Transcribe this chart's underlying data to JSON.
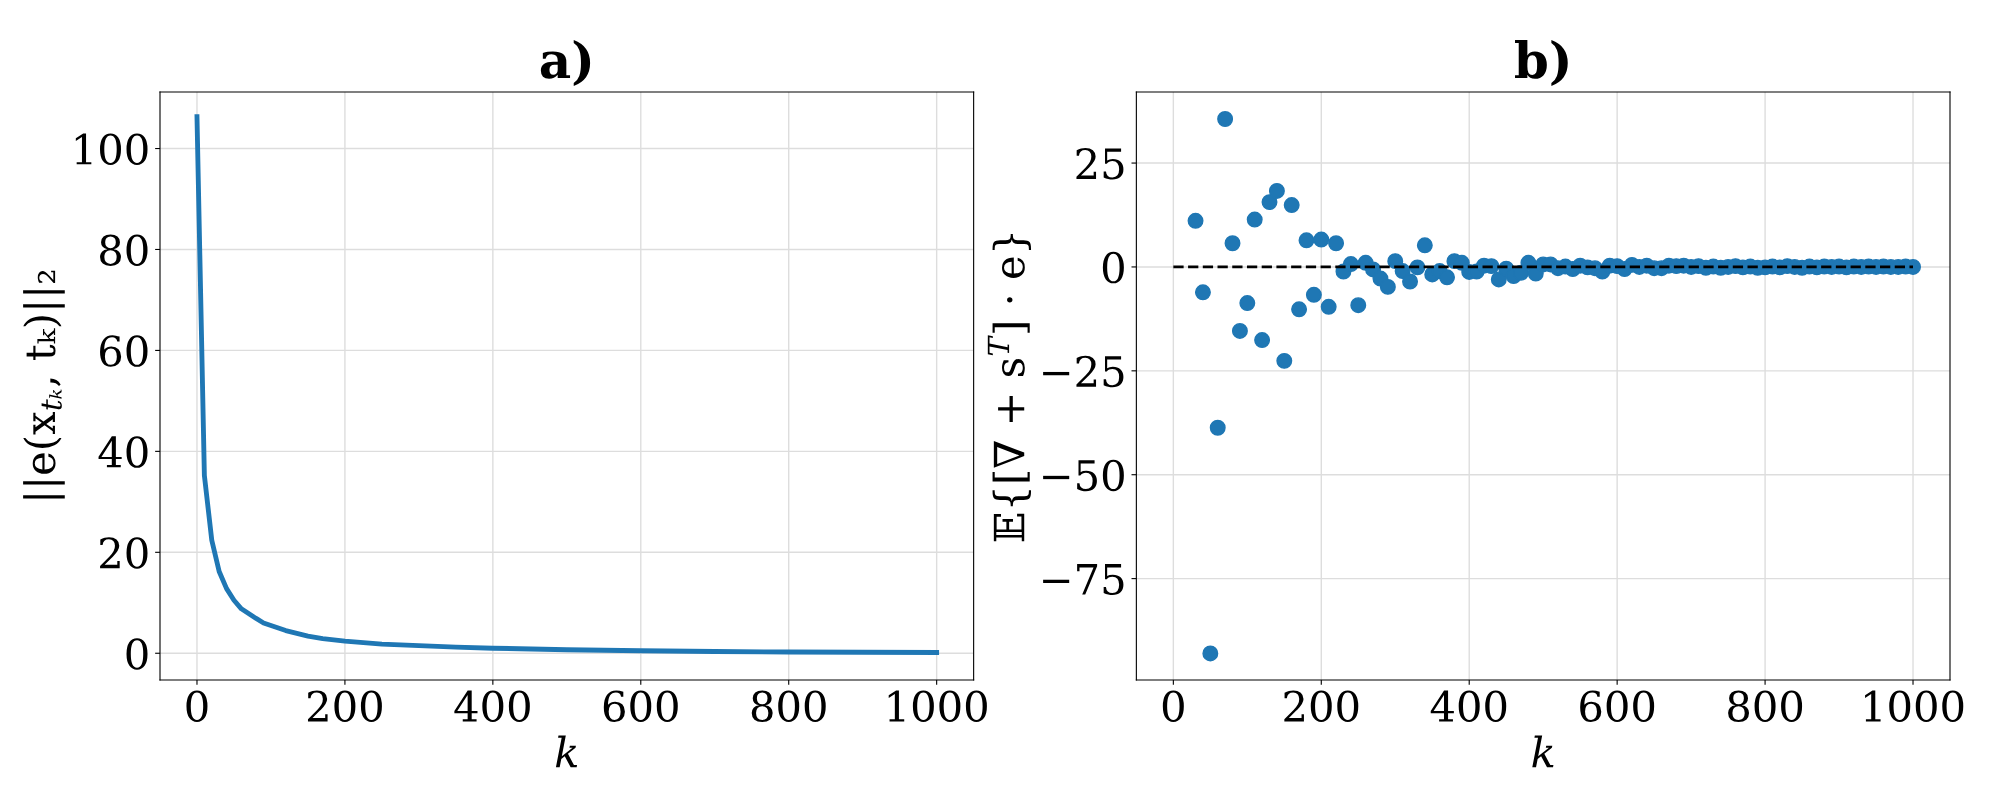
{
  "chart_data": [
    {
      "type": "line",
      "title": "a)",
      "xlabel": "k",
      "ylabel": "||e(x$_{tₖ}$, tₖ)||₂",
      "x": [
        0,
        10,
        20,
        30,
        40,
        50,
        60,
        80,
        90,
        120,
        150,
        170,
        200,
        250,
        300,
        350,
        400,
        500,
        600,
        700,
        800,
        900,
        1000
      ],
      "series": [
        {
          "color": "#1f77b4",
          "values": [
            106.3,
            35.2,
            22.4,
            16.2,
            12.8,
            10.5,
            8.8,
            6.9,
            6.0,
            4.5,
            3.4,
            2.9,
            2.4,
            1.8,
            1.5,
            1.2,
            1.0,
            0.7,
            0.5,
            0.35,
            0.25,
            0.2,
            0.15
          ]
        }
      ],
      "xlim": [
        -50,
        1050
      ],
      "xticks": [
        0,
        200,
        400,
        600,
        800,
        1000
      ],
      "ylim": [
        -5.3,
        111.2
      ],
      "yticks": [
        0,
        20,
        40,
        60,
        80,
        100
      ],
      "grid": true,
      "line_style": "solid",
      "marker": "none"
    },
    {
      "type": "scatter",
      "title": "b)",
      "xlabel": "k",
      "ylabel": "𝔼{[∇ + s$^{T}$] · e}",
      "x": [
        30,
        40,
        50,
        60,
        70,
        80,
        90,
        100,
        110,
        120,
        130,
        140,
        150,
        160,
        170,
        180,
        190,
        200,
        210,
        220,
        230,
        240,
        250,
        260,
        270,
        280,
        290,
        300,
        310,
        320,
        330,
        340,
        350,
        360,
        370,
        380,
        390,
        400,
        410,
        420,
        430,
        440,
        450,
        460,
        470,
        480,
        490,
        500,
        510,
        520,
        530,
        540,
        550,
        560,
        570,
        580,
        590,
        600,
        610,
        620,
        630,
        640,
        650,
        660,
        670,
        680,
        690,
        700,
        710,
        720,
        730,
        740,
        750,
        760,
        770,
        780,
        790,
        800,
        810,
        820,
        830,
        840,
        850,
        860,
        870,
        880,
        890,
        900,
        910,
        920,
        930,
        940,
        950,
        960,
        970,
        980,
        990,
        1000
      ],
      "series": [
        {
          "type": "scatter",
          "color": "#1f77b4",
          "marker": "circle",
          "values": [
            11.1,
            -6.1,
            -93,
            -38.7,
            35.6,
            5.7,
            -15.4,
            -8.7,
            11.4,
            -17.6,
            15.6,
            18.3,
            -22.6,
            14.9,
            -10.2,
            6.4,
            -6.7,
            6.6,
            -9.6,
            5.7,
            -1.1,
            0.7,
            -9.2,
            1.0,
            -0.6,
            -2.8,
            -4.8,
            1.4,
            -1.0,
            -3.5,
            -0.1,
            5.2,
            -1.8,
            -1.0,
            -2.5,
            1.4,
            1.0,
            -1.2,
            -1.1,
            0.3,
            0.2,
            -3.0,
            -0.4,
            -2.2,
            -1.4,
            1.0,
            -1.6,
            0.6,
            0.6,
            -0.3,
            0.1,
            -0.5,
            0.3,
            -0.1,
            -0.3,
            -1.1,
            0.3,
            0.2,
            -0.5,
            0.5,
            0,
            0.3,
            -0.3,
            -0.3,
            0.3,
            0.2,
            0.3,
            0,
            0.2,
            -0.2,
            0.1,
            -0.2,
            0,
            0.2,
            -0.1,
            0.1,
            -0.2,
            -0.1,
            0.1,
            -0.1,
            0.2,
            0,
            -0.2,
            0.1,
            -0.1,
            0.1,
            0,
            0.1,
            -0.1,
            0.1,
            0,
            0.1,
            0,
            0.1,
            0,
            0,
            0.1,
            0
          ]
        },
        {
          "type": "line",
          "color": "#000000",
          "line_style": "dashed",
          "x": [
            0,
            1000
          ],
          "values": [
            0,
            0
          ]
        }
      ],
      "xlim": [
        -50,
        1050
      ],
      "xticks": [
        0,
        200,
        400,
        600,
        800,
        1000
      ],
      "ylim": [
        -99.4,
        42.1
      ],
      "yticks": [
        {
          "value": -75,
          "label": "−75"
        },
        {
          "value": -50,
          "label": "−50"
        },
        {
          "value": -25,
          "label": "−25"
        },
        0,
        25
      ],
      "grid": true
    }
  ]
}
